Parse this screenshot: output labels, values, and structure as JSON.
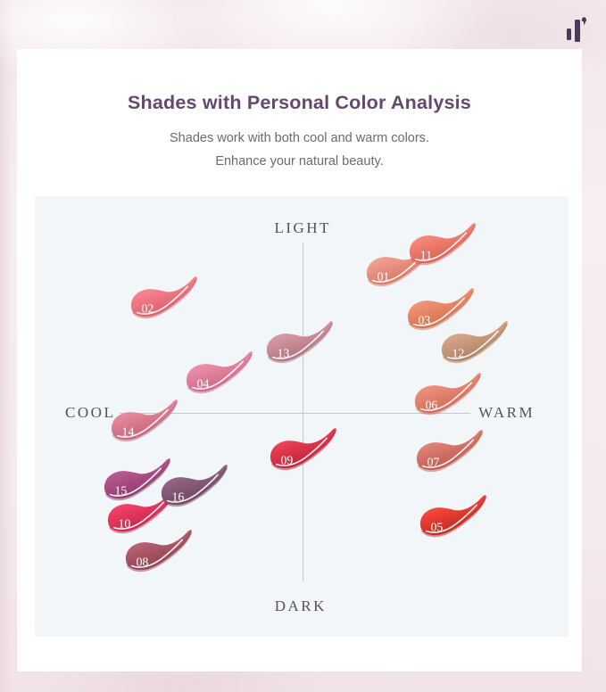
{
  "logo": {
    "icon": "brand-bars-icon",
    "color": "#4e3a57"
  },
  "header": {
    "title": "Shades with Personal Color Analysis",
    "subtitle_line1": "Shades work with both cool and warm colors.",
    "subtitle_line2": "Enhance your natural beauty."
  },
  "colors": {
    "title_text": "#64486f",
    "subtitle_text": "#6b6a72",
    "axis_label": "#57505c",
    "axis_line": "#c7c7cc",
    "panel_background": "#f2f6f9",
    "card_background": "#ffffff",
    "swatch_number_text": "#ffffff"
  },
  "chart_data": {
    "type": "scatter",
    "title": "Shades with Personal Color Analysis",
    "x_axis": {
      "label_left": "COOL",
      "label_right": "WARM",
      "range": [
        -1,
        1
      ]
    },
    "y_axis": {
      "label_bottom": "DARK",
      "label_top": "LIGHT",
      "range": [
        -1,
        1
      ]
    },
    "grid": false,
    "legend": "none",
    "points": [
      {
        "shade": "01",
        "cool_warm": 0.54,
        "dark_light": 0.76,
        "color_light": "#f8b3a4",
        "color_main": "#ef998a",
        "color_dark": "#d4705f"
      },
      {
        "shade": "02",
        "cool_warm": -0.78,
        "dark_light": 0.59,
        "color_light": "#f8a3ac",
        "color_main": "#f47e8b",
        "color_dark": "#d95666"
      },
      {
        "shade": "03",
        "cool_warm": 0.77,
        "dark_light": 0.53,
        "color_light": "#f4a98d",
        "color_main": "#ec8e6e",
        "color_dark": "#cf6a48"
      },
      {
        "shade": "04",
        "cool_warm": -0.47,
        "dark_light": 0.2,
        "color_light": "#f0a8bd",
        "color_main": "#e689a4",
        "color_dark": "#c9607f"
      },
      {
        "shade": "05",
        "cool_warm": 0.84,
        "dark_light": -0.55,
        "color_light": "#f4776c",
        "color_main": "#ee4137",
        "color_dark": "#b7251c"
      },
      {
        "shade": "06",
        "cool_warm": 0.81,
        "dark_light": 0.09,
        "color_light": "#f2a894",
        "color_main": "#e98a76",
        "color_dark": "#cd6350"
      },
      {
        "shade": "07",
        "cool_warm": 0.82,
        "dark_light": -0.21,
        "color_light": "#e9a094",
        "color_main": "#d97c70",
        "color_dark": "#b95547"
      },
      {
        "shade": "08",
        "cool_warm": -0.81,
        "dark_light": -0.73,
        "color_light": "#c47f8c",
        "color_main": "#b05c6c",
        "color_dark": "#8c3c4e"
      },
      {
        "shade": "09",
        "cool_warm": 0.0,
        "dark_light": -0.2,
        "color_light": "#f27185",
        "color_main": "#e53a51",
        "color_dark": "#b81f35"
      },
      {
        "shade": "10",
        "cool_warm": -0.91,
        "dark_light": -0.53,
        "color_light": "#f4708e",
        "color_main": "#ec3d63",
        "color_dark": "#c22148"
      },
      {
        "shade": "11",
        "cool_warm": 0.78,
        "dark_light": 0.87,
        "color_light": "#f7a194",
        "color_main": "#f28374",
        "color_dark": "#d65a4b"
      },
      {
        "shade": "12",
        "cool_warm": 0.96,
        "dark_light": 0.36,
        "color_light": "#e0bb9e",
        "color_main": "#cfa182",
        "color_dark": "#a87a5c"
      },
      {
        "shade": "13",
        "cool_warm": -0.02,
        "dark_light": 0.36,
        "color_light": "#e0aab3",
        "color_main": "#d0939f",
        "color_dark": "#ad6c79"
      },
      {
        "shade": "14",
        "cool_warm": -0.89,
        "dark_light": -0.05,
        "color_light": "#eba4b3",
        "color_main": "#e08497",
        "color_dark": "#c05e75"
      },
      {
        "shade": "15",
        "cool_warm": -0.93,
        "dark_light": -0.36,
        "color_light": "#c87ba6",
        "color_main": "#b2538c",
        "color_dark": "#8a3568"
      },
      {
        "shade": "16",
        "cool_warm": -0.61,
        "dark_light": -0.39,
        "color_light": "#a87f97",
        "color_main": "#8d5f7e",
        "color_dark": "#6b425d"
      }
    ]
  }
}
